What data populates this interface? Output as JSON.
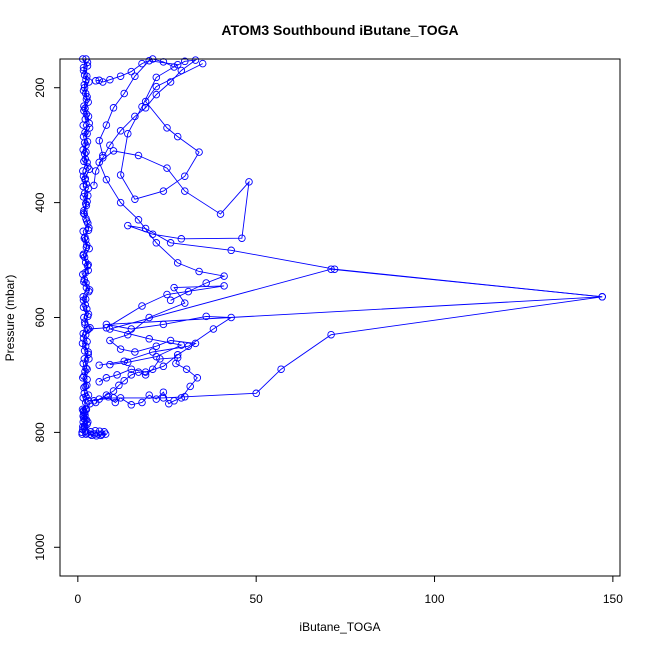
{
  "chart_data": {
    "type": "line",
    "title": "ATOM3 Southbound iButane_TOGA",
    "xlabel": "iButane_TOGA",
    "ylabel": "Pressure (mbar)",
    "xlim": [
      -5,
      152
    ],
    "ylim": [
      1050,
      150
    ],
    "y_reversed": true,
    "x_ticks": [
      0,
      50,
      100,
      150
    ],
    "y_ticks": [
      200,
      400,
      600,
      800,
      1000
    ],
    "x_tick_labels": [
      "0",
      "50",
      "100",
      "150"
    ],
    "y_tick_labels": [
      "200",
      "400",
      "600",
      "800",
      "1000"
    ],
    "grid": false,
    "legend": "none",
    "series": [
      {
        "color": "#0000ff",
        "marker": "open-circle",
        "points": [
          [
            1.2,
            800
          ],
          [
            2.0,
            790
          ],
          [
            1.6,
            770
          ],
          [
            2.4,
            760
          ],
          [
            1.5,
            740
          ],
          [
            3.0,
            735
          ],
          [
            2.1,
            720
          ],
          [
            1.4,
            705
          ],
          [
            2.6,
            690
          ],
          [
            1.8,
            672
          ],
          [
            2.9,
            660
          ],
          [
            1.3,
            645
          ],
          [
            2.2,
            630
          ],
          [
            3.4,
            618
          ],
          [
            1.7,
            600
          ],
          [
            2.5,
            585
          ],
          [
            1.6,
            570
          ],
          [
            3.1,
            555
          ],
          [
            2.3,
            540
          ],
          [
            1.4,
            525
          ],
          [
            2.7,
            510
          ],
          [
            1.9,
            495
          ],
          [
            3.2,
            480
          ],
          [
            2.2,
            465
          ],
          [
            1.5,
            450
          ],
          [
            2.8,
            436
          ],
          [
            1.8,
            420
          ],
          [
            2.4,
            405
          ],
          [
            1.6,
            390
          ],
          [
            3.0,
            375
          ],
          [
            2.0,
            360
          ],
          [
            1.4,
            345
          ],
          [
            2.6,
            330
          ],
          [
            1.9,
            315
          ],
          [
            2.3,
            300
          ],
          [
            1.6,
            285
          ],
          [
            3.3,
            270
          ],
          [
            2.1,
            255
          ],
          [
            1.7,
            240
          ],
          [
            2.9,
            225
          ],
          [
            2.2,
            210
          ],
          [
            1.8,
            195
          ],
          [
            2.5,
            180
          ],
          [
            1.6,
            165
          ],
          [
            2.3,
            150
          ],
          [
            1.4,
            150
          ],
          [
            2.7,
            162
          ],
          [
            1.9,
            178
          ],
          [
            3.1,
            190
          ],
          [
            1.6,
            205
          ],
          [
            2.4,
            220
          ],
          [
            2.0,
            236
          ],
          [
            3.0,
            250
          ],
          [
            1.5,
            265
          ],
          [
            2.6,
            280
          ],
          [
            1.9,
            296
          ],
          [
            2.3,
            312
          ],
          [
            1.7,
            328
          ],
          [
            3.2,
            342
          ],
          [
            2.1,
            358
          ],
          [
            1.5,
            372
          ],
          [
            2.8,
            388
          ],
          [
            2.2,
            402
          ],
          [
            1.6,
            418
          ],
          [
            2.5,
            432
          ],
          [
            3.0,
            448
          ],
          [
            1.8,
            462
          ],
          [
            2.4,
            478
          ],
          [
            1.5,
            492
          ],
          [
            2.9,
            508
          ],
          [
            2.1,
            522
          ],
          [
            1.7,
            538
          ],
          [
            3.3,
            552
          ],
          [
            2.2,
            568
          ],
          [
            1.6,
            582
          ],
          [
            2.8,
            598
          ],
          [
            2.0,
            612
          ],
          [
            1.5,
            628
          ],
          [
            2.6,
            642
          ],
          [
            1.9,
            658
          ],
          [
            3.1,
            672
          ],
          [
            2.3,
            688
          ],
          [
            1.7,
            702
          ],
          [
            2.5,
            718
          ],
          [
            1.8,
            732
          ],
          [
            2.2,
            748
          ],
          [
            1.6,
            762
          ],
          [
            2.0,
            778
          ],
          [
            1.4,
            790
          ],
          [
            2.1,
            798
          ],
          [
            2.8,
            782
          ],
          [
            1.9,
            766
          ],
          [
            3.4,
            750
          ],
          [
            2.3,
            738
          ],
          [
            1.7,
            722
          ],
          [
            2.6,
            708
          ],
          [
            2.0,
            694
          ],
          [
            1.5,
            680
          ],
          [
            2.9,
            664
          ],
          [
            2.2,
            650
          ],
          [
            1.6,
            636
          ],
          [
            2.7,
            622
          ],
          [
            1.9,
            608
          ],
          [
            3.0,
            594
          ],
          [
            2.1,
            578
          ],
          [
            1.5,
            564
          ],
          [
            2.4,
            548
          ],
          [
            1.8,
            534
          ],
          [
            2.9,
            518
          ],
          [
            2.2,
            504
          ],
          [
            1.6,
            490
          ],
          [
            2.5,
            474
          ],
          [
            2.0,
            460
          ],
          [
            3.1,
            444
          ],
          [
            2.3,
            428
          ],
          [
            1.7,
            414
          ],
          [
            2.6,
            398
          ],
          [
            1.9,
            384
          ],
          [
            2.4,
            368
          ],
          [
            1.6,
            354
          ],
          [
            2.8,
            338
          ],
          [
            2.1,
            324
          ],
          [
            1.5,
            308
          ],
          [
            2.7,
            294
          ],
          [
            2.0,
            278
          ],
          [
            3.2,
            262
          ],
          [
            2.4,
            246
          ],
          [
            1.7,
            232
          ],
          [
            2.6,
            216
          ],
          [
            1.9,
            200
          ],
          [
            2.3,
            186
          ],
          [
            1.6,
            170
          ],
          [
            2.7,
            156
          ]
        ]
      },
      {
        "color": "#0000ff",
        "marker": "open-circle",
        "points": [
          [
            1.5,
            772
          ],
          [
            1.9,
            766
          ],
          [
            1.6,
            764
          ],
          [
            2.2,
            760
          ],
          [
            1.3,
            760
          ],
          [
            2.0,
            770
          ],
          [
            1.7,
            776
          ],
          [
            2.4,
            778
          ],
          [
            1.5,
            782
          ],
          [
            1.8,
            790
          ],
          [
            2.6,
            786
          ],
          [
            1.4,
            795
          ]
        ]
      },
      {
        "color": "#0000ff",
        "marker": "open-circle",
        "points": [
          [
            1.2,
            803
          ],
          [
            2.3,
            803
          ],
          [
            3.4,
            803
          ],
          [
            4.6,
            803
          ],
          [
            5.7,
            803
          ],
          [
            6.8,
            803
          ],
          [
            7.8,
            803
          ],
          [
            6.1,
            798
          ],
          [
            4.9,
            797
          ],
          [
            3.6,
            799
          ],
          [
            2.6,
            801
          ],
          [
            3.9,
            805
          ],
          [
            5.2,
            806
          ],
          [
            6.5,
            805
          ],
          [
            7.4,
            799
          ]
        ]
      },
      {
        "color": "#0000ff",
        "marker": "open-circle",
        "points": [
          [
            4.5,
            745
          ],
          [
            8.5,
            738
          ],
          [
            10.5,
            748
          ],
          [
            12.0,
            740
          ],
          [
            15.0,
            752
          ],
          [
            18.0,
            748
          ],
          [
            20.0,
            735
          ],
          [
            22.0,
            742
          ],
          [
            24.0,
            730
          ],
          [
            25.5,
            750
          ],
          [
            27.0,
            745
          ],
          [
            29.0,
            740
          ],
          [
            31.5,
            720
          ],
          [
            33.5,
            705
          ],
          [
            30.5,
            690
          ],
          [
            27.5,
            680
          ],
          [
            28.0,
            670
          ],
          [
            23.0,
            672
          ],
          [
            21.0,
            690
          ],
          [
            19.0,
            700
          ],
          [
            17.0,
            695
          ],
          [
            15.0,
            700
          ],
          [
            13.0,
            710
          ],
          [
            11.5,
            718
          ],
          [
            10.0,
            728
          ],
          [
            8.0,
            735
          ],
          [
            6.0,
            742
          ],
          [
            5.0,
            748
          ]
        ]
      },
      {
        "color": "#0000ff",
        "marker": "open-circle",
        "points": [
          [
            3.0,
            620
          ],
          [
            8.0,
            618
          ],
          [
            18.0,
            580
          ],
          [
            25.0,
            560
          ],
          [
            41.0,
            545
          ],
          [
            27.0,
            548
          ],
          [
            30.0,
            575
          ],
          [
            20.0,
            600
          ],
          [
            14.0,
            630
          ],
          [
            9.0,
            640
          ],
          [
            12.0,
            655
          ],
          [
            16.0,
            660
          ],
          [
            22.0,
            650
          ],
          [
            26.0,
            640
          ],
          [
            33.0,
            645
          ],
          [
            28.0,
            665
          ],
          [
            24.0,
            685
          ],
          [
            19.0,
            695
          ],
          [
            15.0,
            690
          ],
          [
            11.0,
            700
          ],
          [
            8.0,
            705
          ],
          [
            6.0,
            712
          ]
        ]
      },
      {
        "color": "#0000ff",
        "marker": "open-circle",
        "points": [
          [
            6.0,
            683
          ],
          [
            13.0,
            676
          ],
          [
            21.0,
            660
          ],
          [
            31.0,
            650
          ],
          [
            38.0,
            620
          ],
          [
            43.0,
            600
          ],
          [
            36.0,
            598
          ],
          [
            24.0,
            612
          ],
          [
            15.0,
            620
          ],
          [
            8.0,
            612
          ],
          [
            147.0,
            564
          ],
          [
            72.0,
            516
          ],
          [
            43.0,
            483
          ],
          [
            26.0,
            470
          ],
          [
            19.0,
            445
          ],
          [
            14.0,
            440
          ],
          [
            21.0,
            455
          ],
          [
            29.0,
            463
          ],
          [
            46.0,
            462
          ],
          [
            48.0,
            364
          ],
          [
            40.0,
            420
          ],
          [
            30.0,
            380
          ],
          [
            25.0,
            340
          ],
          [
            17.0,
            318
          ],
          [
            10.0,
            310
          ],
          [
            6.0,
            330
          ],
          [
            8.0,
            360
          ],
          [
            12.0,
            400
          ],
          [
            17.0,
            430
          ],
          [
            22.0,
            470
          ],
          [
            28.0,
            505
          ],
          [
            34.0,
            520
          ],
          [
            41.0,
            528
          ],
          [
            36.0,
            540
          ],
          [
            31.0,
            555
          ],
          [
            26.0,
            570
          ]
        ]
      },
      {
        "color": "#0000ff",
        "marker": "open-circle",
        "points": [
          [
            3.0,
            745
          ],
          [
            10.0,
            740
          ],
          [
            24.0,
            740
          ],
          [
            30.0,
            738
          ],
          [
            50.0,
            732
          ],
          [
            57.0,
            690
          ],
          [
            71.0,
            630
          ],
          [
            147.0,
            564
          ],
          [
            71.0,
            516
          ],
          [
            9.0,
            620
          ],
          [
            20.0,
            637
          ],
          [
            29.0,
            648
          ],
          [
            22.0,
            668
          ],
          [
            14.0,
            678
          ],
          [
            9.0,
            682
          ]
        ]
      },
      {
        "color": "#0000ff",
        "marker": "open-circle",
        "points": [
          [
            35.0,
            158
          ],
          [
            22.0,
            198
          ],
          [
            19.0,
            224
          ],
          [
            25.0,
            270
          ],
          [
            28.0,
            285
          ],
          [
            34.0,
            312
          ],
          [
            30.0,
            354
          ],
          [
            24.0,
            380
          ],
          [
            16.0,
            394
          ],
          [
            12.0,
            352
          ],
          [
            14.0,
            280
          ],
          [
            18.0,
            233
          ],
          [
            22.0,
            182
          ],
          [
            28.0,
            160
          ],
          [
            20.0,
            153
          ],
          [
            16.0,
            180
          ],
          [
            13.0,
            210
          ],
          [
            10.0,
            235
          ],
          [
            8.0,
            265
          ],
          [
            6.0,
            292
          ],
          [
            7.0,
            318
          ]
        ]
      },
      {
        "color": "#0000ff",
        "marker": "open-circle",
        "points": [
          [
            5.0,
            188
          ],
          [
            6.0,
            187
          ],
          [
            7.0,
            190
          ],
          [
            9.0,
            186
          ],
          [
            12.0,
            180
          ],
          [
            15.0,
            172
          ],
          [
            18.0,
            158
          ],
          [
            21.0,
            150
          ],
          [
            24.0,
            155
          ],
          [
            27.0,
            164
          ],
          [
            30.0,
            154
          ],
          [
            33.0,
            152
          ],
          [
            29.0,
            170
          ],
          [
            26.0,
            190
          ],
          [
            22.0,
            212
          ],
          [
            19.0,
            235
          ],
          [
            16.0,
            250
          ],
          [
            12.0,
            275
          ],
          [
            9.0,
            300
          ],
          [
            7.0,
            322
          ],
          [
            5.0,
            345
          ],
          [
            4.5,
            370
          ]
        ]
      }
    ]
  }
}
